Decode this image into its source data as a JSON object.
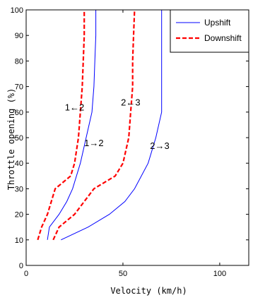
{
  "chart_data": {
    "type": "line",
    "title": "",
    "xlabel": "Velocity (km/h)",
    "ylabel": "Throttle opening (%)",
    "xlim": [
      0,
      115
    ],
    "ylim": [
      0,
      100
    ],
    "xticks": [
      "0",
      "50",
      "100"
    ],
    "yticks": [
      "0",
      "10",
      "20",
      "30",
      "40",
      "50",
      "60",
      "70",
      "80",
      "90",
      "100"
    ],
    "grid": false,
    "legend_position": "top-right",
    "legend": [
      {
        "label": "Upshift",
        "color": "#0000ff",
        "style": "solid"
      },
      {
        "label": "Downshift",
        "color": "#ff0000",
        "style": "dashed"
      }
    ],
    "series": [
      {
        "name": "Upshift",
        "curve": "1→2",
        "color": "#0000ff",
        "style": "solid",
        "points": [
          [
            11,
            10
          ],
          [
            12,
            15
          ],
          [
            17,
            20
          ],
          [
            21,
            25
          ],
          [
            24,
            30
          ],
          [
            28,
            40
          ],
          [
            31,
            50
          ],
          [
            34,
            60
          ],
          [
            35,
            70
          ],
          [
            35.5,
            80
          ],
          [
            36,
            90
          ],
          [
            36,
            100
          ]
        ]
      },
      {
        "name": "Upshift",
        "curve": "2→3",
        "color": "#0000ff",
        "style": "solid",
        "points": [
          [
            18,
            10
          ],
          [
            32,
            15
          ],
          [
            43,
            20
          ],
          [
            51,
            25
          ],
          [
            56,
            30
          ],
          [
            63,
            40
          ],
          [
            67,
            50
          ],
          [
            70,
            60
          ],
          [
            70,
            70
          ],
          [
            70,
            80
          ],
          [
            70,
            90
          ],
          [
            70,
            100
          ]
        ]
      },
      {
        "name": "Downshift",
        "curve": "1←2",
        "color": "#ff0000",
        "style": "dashed",
        "points": [
          [
            6,
            10
          ],
          [
            8,
            15
          ],
          [
            11,
            20
          ],
          [
            13,
            25
          ],
          [
            15,
            30
          ],
          [
            23,
            35
          ],
          [
            25,
            40
          ],
          [
            27,
            50
          ],
          [
            28,
            60
          ],
          [
            29,
            70
          ],
          [
            29.5,
            80
          ],
          [
            30,
            90
          ],
          [
            30,
            100
          ]
        ]
      },
      {
        "name": "Downshift",
        "curve": "2←3",
        "color": "#ff0000",
        "style": "dashed",
        "points": [
          [
            14,
            10
          ],
          [
            17,
            15
          ],
          [
            25,
            20
          ],
          [
            30,
            25
          ],
          [
            35,
            30
          ],
          [
            46,
            35
          ],
          [
            50,
            40
          ],
          [
            53,
            50
          ],
          [
            54,
            60
          ],
          [
            55,
            70
          ],
          [
            55,
            80
          ],
          [
            55.5,
            90
          ],
          [
            56,
            100
          ]
        ]
      }
    ],
    "annotations": [
      {
        "text": "1←2",
        "x": 25,
        "y": 62
      },
      {
        "text": "2←3",
        "x": 54,
        "y": 64
      },
      {
        "text": "1→2",
        "x": 35,
        "y": 48
      },
      {
        "text": "2→3",
        "x": 69,
        "y": 47
      }
    ]
  }
}
